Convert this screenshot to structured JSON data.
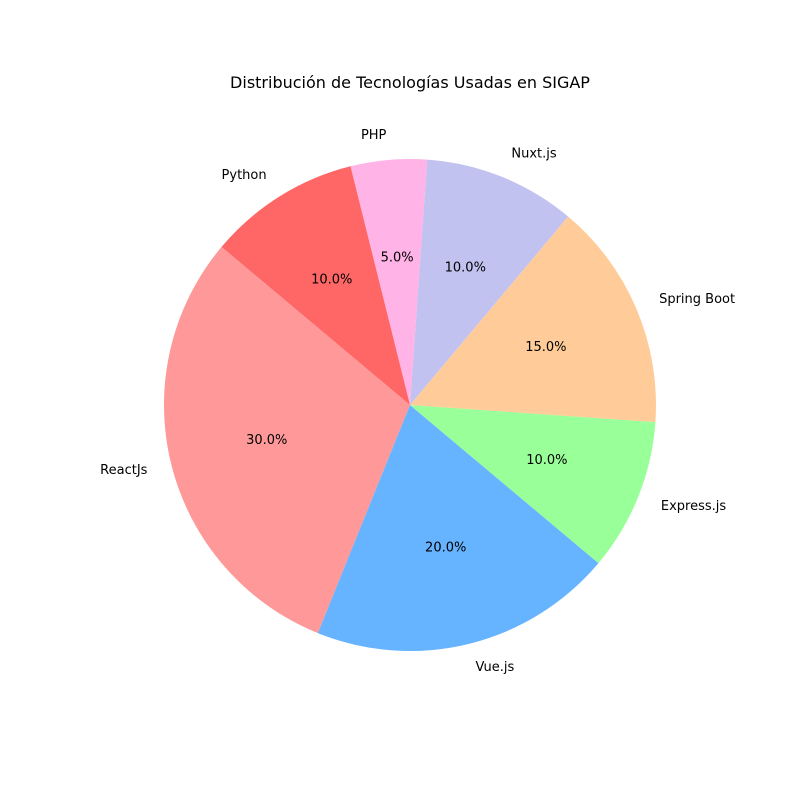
{
  "chart_data": {
    "type": "pie",
    "title": "Distribución de Tecnologías Usadas en SIGAP",
    "start_angle_deg": 140,
    "direction": "counterclockwise",
    "slices": [
      {
        "label": "ReactJs",
        "value": 30.0,
        "pct_label": "30.0%",
        "color": "#ff9999"
      },
      {
        "label": "Vue.js",
        "value": 20.0,
        "pct_label": "20.0%",
        "color": "#66b3ff"
      },
      {
        "label": "Express.js",
        "value": 10.0,
        "pct_label": "10.0%",
        "color": "#99ff99"
      },
      {
        "label": "Spring Boot",
        "value": 15.0,
        "pct_label": "15.0%",
        "color": "#ffcc99"
      },
      {
        "label": "Nuxt.js",
        "value": 10.0,
        "pct_label": "10.0%",
        "color": "#c2c2f0"
      },
      {
        "label": "PHP",
        "value": 5.0,
        "pct_label": "5.0%",
        "color": "#ffb3e6"
      },
      {
        "label": "Python",
        "value": 10.0,
        "pct_label": "10.0%",
        "color": "#ff6666"
      }
    ]
  }
}
